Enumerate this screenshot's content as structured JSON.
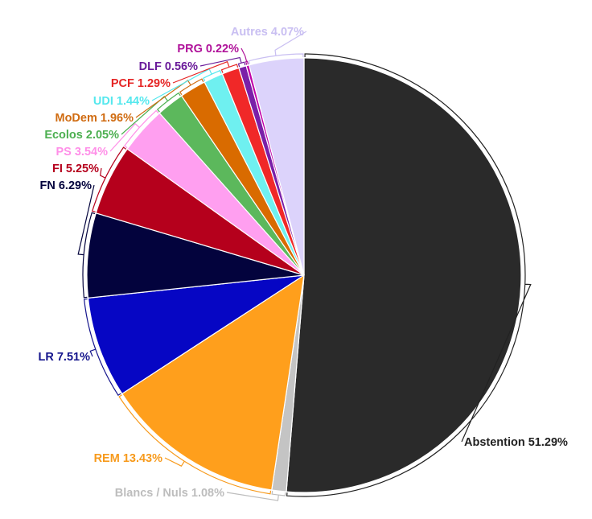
{
  "chart_data": {
    "type": "pie",
    "title": "",
    "slices": [
      {
        "name": "Abstention",
        "value": 51.29,
        "label": "Abstention 51.29%",
        "color": "#2a2a2a",
        "label_color": "#222222"
      },
      {
        "name": "Blancs / Nuls",
        "value": 1.08,
        "label": "Blancs / Nuls 1.08%",
        "color": "#c4c4c4",
        "label_color": "#bdbdbd"
      },
      {
        "name": "REM",
        "value": 13.43,
        "label": "REM 13.43%",
        "color": "#ff9f1c",
        "label_color": "#f79a1c"
      },
      {
        "name": "LR",
        "value": 7.51,
        "label": "LR 7.51%",
        "color": "#0606c4",
        "label_color": "#14148c"
      },
      {
        "name": "FN",
        "value": 6.29,
        "label": "FN 6.29%",
        "color": "#03033d",
        "label_color": "#03033d"
      },
      {
        "name": "FI",
        "value": 5.25,
        "label": "FI 5.25%",
        "color": "#b5001c",
        "label_color": "#b5001c"
      },
      {
        "name": "PS",
        "value": 3.54,
        "label": "PS 3.54%",
        "color": "#ff9ff0",
        "label_color": "#ff8fe8"
      },
      {
        "name": "Ecolos",
        "value": 2.05,
        "label": "Ecolos 2.05%",
        "color": "#5cb85c",
        "label_color": "#4caf50"
      },
      {
        "name": "MoDem",
        "value": 1.96,
        "label": "MoDem 1.96%",
        "color": "#d96b00",
        "label_color": "#d06c12"
      },
      {
        "name": "UDI",
        "value": 1.44,
        "label": "UDI 1.44%",
        "color": "#6ff0f0",
        "label_color": "#55e8ee"
      },
      {
        "name": "PCF",
        "value": 1.29,
        "label": "PCF 1.29%",
        "color": "#f02828",
        "label_color": "#e52424"
      },
      {
        "name": "DLF",
        "value": 0.56,
        "label": "DLF 0.56%",
        "color": "#7a1fa8",
        "label_color": "#6a1b9a"
      },
      {
        "name": "PRG",
        "value": 0.22,
        "label": "PRG 0.22%",
        "color": "#c000a8",
        "label_color": "#b0129a"
      },
      {
        "name": "Autres",
        "value": 4.07,
        "label": "Autres 4.07%",
        "color": "#dcd3fb",
        "label_color": "#c9bff2"
      }
    ]
  }
}
